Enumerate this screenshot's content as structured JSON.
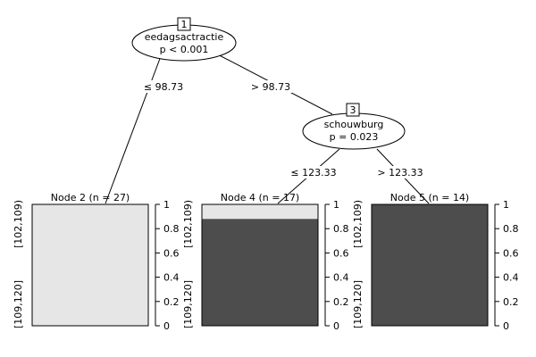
{
  "colors": {
    "light_fill": "#e6e6e6",
    "dark_fill": "#4d4d4d",
    "stroke": "#000000",
    "background": "#ffffff"
  },
  "nodes": {
    "n1": {
      "id": "1",
      "variable": "eedagsactractie",
      "p": "p < 0.001"
    },
    "n3": {
      "id": "3",
      "variable": "schouwburg",
      "p": "p = 0.023"
    }
  },
  "edges": {
    "e1_2": "≤ 98.73",
    "e1_3": "> 98.73",
    "e3_4": "≤ 123.33",
    "e3_5": "> 123.33"
  },
  "terminals": [
    {
      "title": "Node 2 (n = 27)",
      "dark_fraction": 0.0
    },
    {
      "title": "Node 4 (n = 17)",
      "dark_fraction": 0.88
    },
    {
      "title": "Node 5 (n = 14)",
      "dark_fraction": 1.0
    }
  ],
  "y_ticks": [
    "0",
    "0.2",
    "0.4",
    "0.6",
    "0.8",
    "1"
  ],
  "y_tick_values": [
    0,
    0.2,
    0.4,
    0.6,
    0.8,
    1
  ],
  "class_labels": [
    "[102,109)",
    "[109,120]"
  ]
}
